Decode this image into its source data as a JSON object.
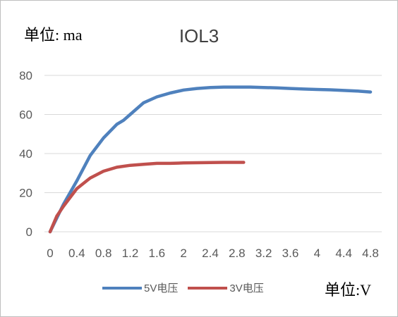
{
  "chart_data": {
    "type": "line",
    "title": "IOL3",
    "ylabel": "单位: ma",
    "xlabel": "单位:V",
    "x_ticks": [
      "0",
      "0.4",
      "0.8",
      "1.2",
      "1.6",
      "2",
      "2.4",
      "2.8",
      "3.2",
      "3.6",
      "4",
      "4.4",
      "4.8"
    ],
    "y_ticks": [
      "0",
      "20",
      "40",
      "60",
      "80"
    ],
    "xlim": [
      0,
      4.8
    ],
    "ylim": [
      0,
      80
    ],
    "grid": true,
    "legend_position": "bottom",
    "series": [
      {
        "name": "5V电压",
        "color": "#4f81bd",
        "points": [
          [
            0,
            0
          ],
          [
            0.2,
            14
          ],
          [
            0.4,
            26
          ],
          [
            0.6,
            39
          ],
          [
            0.8,
            48
          ],
          [
            1.0,
            55
          ],
          [
            1.1,
            57
          ],
          [
            1.2,
            60
          ],
          [
            1.4,
            66
          ],
          [
            1.6,
            69
          ],
          [
            1.8,
            71
          ],
          [
            2.0,
            72.5
          ],
          [
            2.2,
            73.3
          ],
          [
            2.4,
            73.8
          ],
          [
            2.6,
            74
          ],
          [
            2.8,
            74
          ],
          [
            3.0,
            74
          ],
          [
            3.2,
            73.8
          ],
          [
            3.4,
            73.6
          ],
          [
            3.6,
            73.3
          ],
          [
            3.8,
            73
          ],
          [
            4.0,
            72.8
          ],
          [
            4.2,
            72.6
          ],
          [
            4.4,
            72.3
          ],
          [
            4.6,
            72
          ],
          [
            4.8,
            71.5
          ]
        ]
      },
      {
        "name": "3V电压",
        "color": "#c0504d",
        "points": [
          [
            0,
            0
          ],
          [
            0.1,
            8
          ],
          [
            0.2,
            13
          ],
          [
            0.4,
            22
          ],
          [
            0.6,
            27.5
          ],
          [
            0.8,
            31
          ],
          [
            1.0,
            33
          ],
          [
            1.2,
            34
          ],
          [
            1.4,
            34.5
          ],
          [
            1.6,
            35
          ],
          [
            1.8,
            35
          ],
          [
            2.0,
            35.2
          ],
          [
            2.2,
            35.3
          ],
          [
            2.4,
            35.4
          ],
          [
            2.6,
            35.5
          ],
          [
            2.8,
            35.5
          ],
          [
            2.9,
            35.5
          ]
        ]
      }
    ]
  }
}
